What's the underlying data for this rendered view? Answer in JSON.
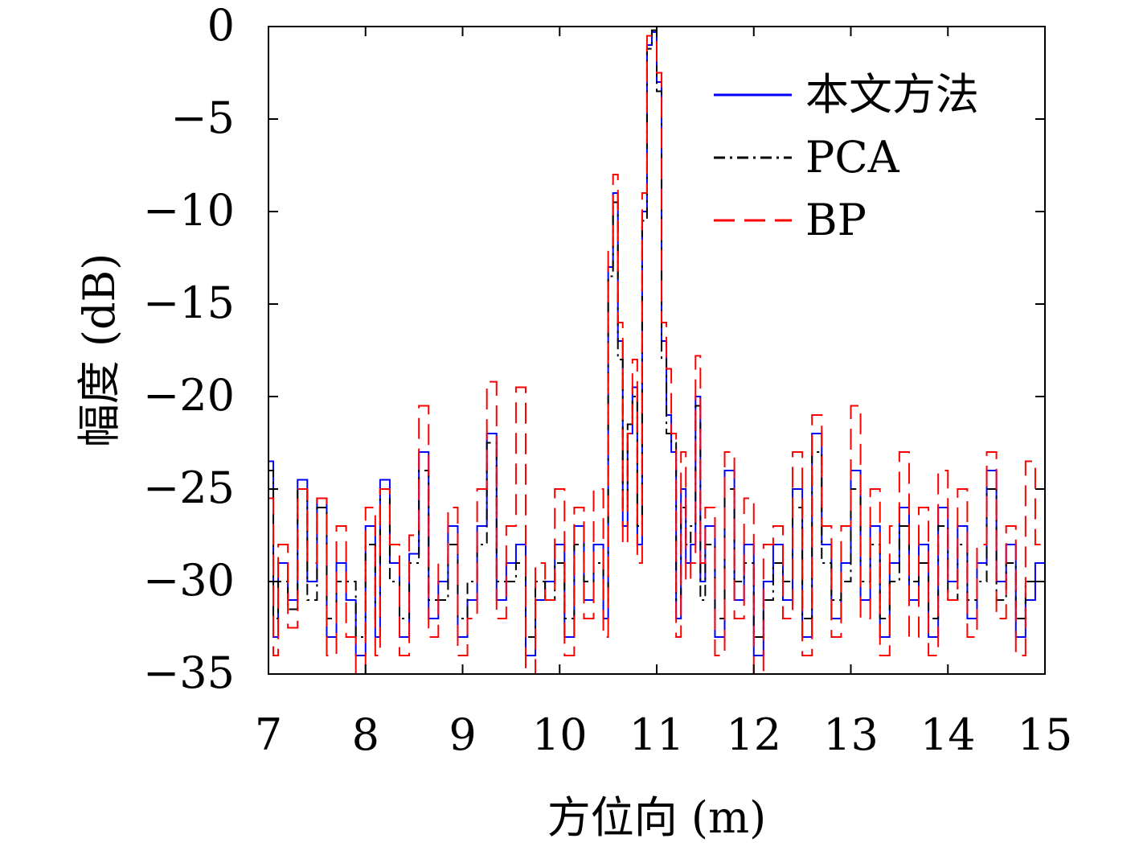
{
  "chart_data": {
    "type": "line",
    "title": "",
    "xlabel": "方位向 (m)",
    "ylabel": "幅度 (dB)",
    "xlim": [
      7,
      15
    ],
    "ylim": [
      -35,
      0
    ],
    "xticks": [
      "7",
      "8",
      "9",
      "10",
      "11",
      "12",
      "13",
      "14",
      "15"
    ],
    "yticks": [
      "0",
      "−5",
      "−10",
      "−15",
      "−20",
      "−25",
      "−30",
      "−35"
    ],
    "grid": false,
    "legend_position": "top-right",
    "series": [
      {
        "name": "本文方法",
        "color": "#0000ff",
        "style": "solid",
        "x": [
          7.0,
          7.05,
          7.1,
          7.2,
          7.3,
          7.4,
          7.5,
          7.6,
          7.7,
          7.8,
          7.9,
          8.0,
          8.1,
          8.15,
          8.25,
          8.35,
          8.45,
          8.55,
          8.65,
          8.75,
          8.85,
          8.95,
          9.05,
          9.15,
          9.25,
          9.35,
          9.45,
          9.55,
          9.65,
          9.75,
          9.85,
          9.95,
          10.05,
          10.15,
          10.25,
          10.35,
          10.45,
          10.5,
          10.55,
          10.6,
          10.65,
          10.7,
          10.75,
          10.8,
          10.85,
          10.9,
          10.95,
          11.0,
          11.05,
          11.1,
          11.15,
          11.2,
          11.25,
          11.3,
          11.35,
          11.4,
          11.45,
          11.5,
          11.6,
          11.7,
          11.8,
          11.9,
          12.0,
          12.1,
          12.2,
          12.3,
          12.4,
          12.5,
          12.6,
          12.7,
          12.8,
          12.9,
          13.0,
          13.1,
          13.2,
          13.3,
          13.4,
          13.5,
          13.6,
          13.7,
          13.8,
          13.9,
          14.0,
          14.1,
          14.2,
          14.3,
          14.4,
          14.5,
          14.6,
          14.7,
          14.8,
          14.9,
          15.0
        ],
        "values": [
          -23.5,
          -33,
          -29,
          -31,
          -24.5,
          -30,
          -25.5,
          -33,
          -29,
          -31,
          -34,
          -27,
          -33,
          -24.5,
          -29,
          -33,
          -28.5,
          -23,
          -32,
          -30,
          -27,
          -33,
          -31,
          -27,
          -22,
          -31,
          -29,
          -28,
          -34,
          -31,
          -30,
          -28,
          -33,
          -27,
          -31,
          -28,
          -32,
          -13,
          -9,
          -17,
          -27,
          -22,
          -19.5,
          -28,
          -10,
          -1,
          -0.3,
          -3,
          -17,
          -21,
          -23,
          -32,
          -25,
          -29,
          -28,
          -20,
          -30,
          -27,
          -33,
          -24,
          -31,
          -28,
          -34,
          -30,
          -28,
          -31,
          -25,
          -33,
          -22,
          -28,
          -32,
          -29,
          -24,
          -31,
          -27,
          -33,
          -29,
          -26,
          -31,
          -28,
          -33,
          -26,
          -30,
          -27,
          -32,
          -29,
          -24,
          -30,
          -28,
          -33,
          -31,
          -29,
          -31.5
        ]
      },
      {
        "name": "PCA",
        "color": "#000000",
        "style": "dashdot",
        "x": [
          7.0,
          7.05,
          7.1,
          7.2,
          7.3,
          7.4,
          7.5,
          7.6,
          7.7,
          7.8,
          7.9,
          8.0,
          8.1,
          8.15,
          8.25,
          8.35,
          8.45,
          8.55,
          8.65,
          8.75,
          8.85,
          8.95,
          9.05,
          9.15,
          9.25,
          9.35,
          9.45,
          9.55,
          9.65,
          9.75,
          9.85,
          9.95,
          10.05,
          10.15,
          10.25,
          10.35,
          10.45,
          10.5,
          10.55,
          10.6,
          10.65,
          10.7,
          10.75,
          10.8,
          10.85,
          10.9,
          10.95,
          11.0,
          11.05,
          11.1,
          11.15,
          11.2,
          11.25,
          11.3,
          11.35,
          11.4,
          11.45,
          11.5,
          11.6,
          11.7,
          11.8,
          11.9,
          12.0,
          12.1,
          12.2,
          12.3,
          12.4,
          12.5,
          12.6,
          12.7,
          12.8,
          12.9,
          13.0,
          13.1,
          13.2,
          13.3,
          13.4,
          13.5,
          13.6,
          13.7,
          13.8,
          13.9,
          14.0,
          14.1,
          14.2,
          14.3,
          14.4,
          14.5,
          14.6,
          14.7,
          14.8,
          14.9,
          15.0
        ],
        "values": [
          -24,
          -32,
          -30,
          -31.5,
          -25,
          -31,
          -26,
          -32,
          -30,
          -30,
          -33,
          -28,
          -32,
          -25,
          -30,
          -32,
          -29,
          -24,
          -31,
          -31,
          -28,
          -32,
          -30,
          -28,
          -22.5,
          -30,
          -30,
          -29,
          -33,
          -30,
          -31,
          -29,
          -32,
          -28,
          -30,
          -29,
          -31,
          -13.5,
          -9.5,
          -18,
          -26,
          -21.5,
          -20,
          -27,
          -10.5,
          -1.2,
          -0.2,
          -3.5,
          -18,
          -22,
          -22.5,
          -31,
          -26,
          -28,
          -27,
          -20.5,
          -31,
          -28,
          -32,
          -25,
          -30,
          -29,
          -33,
          -31,
          -29,
          -30,
          -26,
          -32,
          -23,
          -29,
          -31,
          -30,
          -25,
          -30,
          -28,
          -32,
          -30,
          -27,
          -30,
          -29,
          -32,
          -27,
          -31,
          -28,
          -31,
          -30,
          -25,
          -31,
          -29,
          -32,
          -30,
          -30,
          -32
        ]
      },
      {
        "name": "BP",
        "color": "#ff0000",
        "style": "dashed",
        "x": [
          7.0,
          7.05,
          7.1,
          7.2,
          7.3,
          7.4,
          7.5,
          7.6,
          7.7,
          7.8,
          7.9,
          8.0,
          8.1,
          8.15,
          8.25,
          8.35,
          8.45,
          8.55,
          8.65,
          8.75,
          8.85,
          8.95,
          9.05,
          9.15,
          9.25,
          9.35,
          9.45,
          9.55,
          9.65,
          9.75,
          9.85,
          9.95,
          10.05,
          10.15,
          10.25,
          10.35,
          10.45,
          10.5,
          10.55,
          10.6,
          10.65,
          10.7,
          10.75,
          10.8,
          10.85,
          10.9,
          10.95,
          11.0,
          11.05,
          11.1,
          11.15,
          11.2,
          11.25,
          11.3,
          11.35,
          11.4,
          11.45,
          11.5,
          11.6,
          11.7,
          11.8,
          11.9,
          12.0,
          12.1,
          12.2,
          12.3,
          12.4,
          12.5,
          12.6,
          12.7,
          12.8,
          12.9,
          13.0,
          13.1,
          13.2,
          13.3,
          13.4,
          13.5,
          13.6,
          13.7,
          13.8,
          13.9,
          14.0,
          14.1,
          14.2,
          14.3,
          14.4,
          14.5,
          14.6,
          14.7,
          14.8,
          14.9,
          15.0
        ],
        "values": [
          -25.5,
          -34,
          -28,
          -32.5,
          -25,
          -29,
          -25.5,
          -34,
          -27,
          -33,
          -35,
          -26,
          -34,
          -25,
          -28,
          -34,
          -27.5,
          -20.5,
          -33,
          -29,
          -26,
          -34,
          -32,
          -25,
          -19.2,
          -32,
          -27,
          -19.5,
          -35,
          -29,
          -31,
          -25,
          -34,
          -26,
          -32,
          -25,
          -33,
          -12,
          -8,
          -16,
          -28,
          -22,
          -18,
          -29,
          -9,
          -0.5,
          -0.5,
          -2.5,
          -16,
          -18.5,
          -22,
          -33,
          -23,
          -30,
          -29,
          -17.8,
          -29,
          -26,
          -34,
          -23,
          -32,
          -25.5,
          -35,
          -28,
          -27,
          -32,
          -23,
          -34,
          -21,
          -27,
          -33,
          -27,
          -20.5,
          -32,
          -25,
          -34,
          -27,
          -23,
          -33,
          -26,
          -34,
          -24,
          -31,
          -25,
          -33,
          -28,
          -23,
          -32,
          -27,
          -34,
          -23.5,
          -28,
          -33
        ]
      }
    ]
  }
}
